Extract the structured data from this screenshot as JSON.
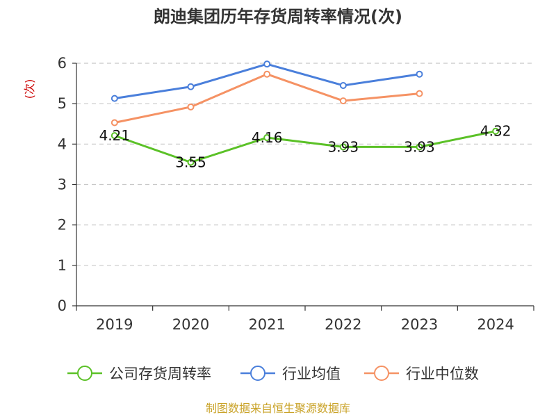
{
  "chart_data": {
    "type": "line",
    "title": "朗迪集团历年存货周转率情况(次)",
    "ylabel": "(次)",
    "xlabel": "",
    "categories": [
      "2019",
      "2020",
      "2021",
      "2022",
      "2023",
      "2024"
    ],
    "ylim": [
      0,
      6
    ],
    "yticks": [
      0,
      1,
      2,
      3,
      4,
      5,
      6
    ],
    "grid": true,
    "legend_position": "bottom",
    "series": [
      {
        "name": "公司存货周转率",
        "color": "#5bc127",
        "values": [
          4.21,
          3.55,
          4.16,
          3.93,
          3.93,
          4.32
        ],
        "labels": [
          "4.21",
          "3.55",
          "4.16",
          "3.93",
          "3.93",
          "4.32"
        ]
      },
      {
        "name": "行业均值",
        "color": "#4a7fdb",
        "values": [
          5.13,
          5.42,
          5.98,
          5.45,
          5.73,
          null
        ]
      },
      {
        "name": "行业中位数",
        "color": "#f59264",
        "values": [
          4.53,
          4.92,
          5.73,
          5.07,
          5.25,
          null
        ]
      }
    ],
    "source": "制图数据来自恒生聚源数据库"
  }
}
